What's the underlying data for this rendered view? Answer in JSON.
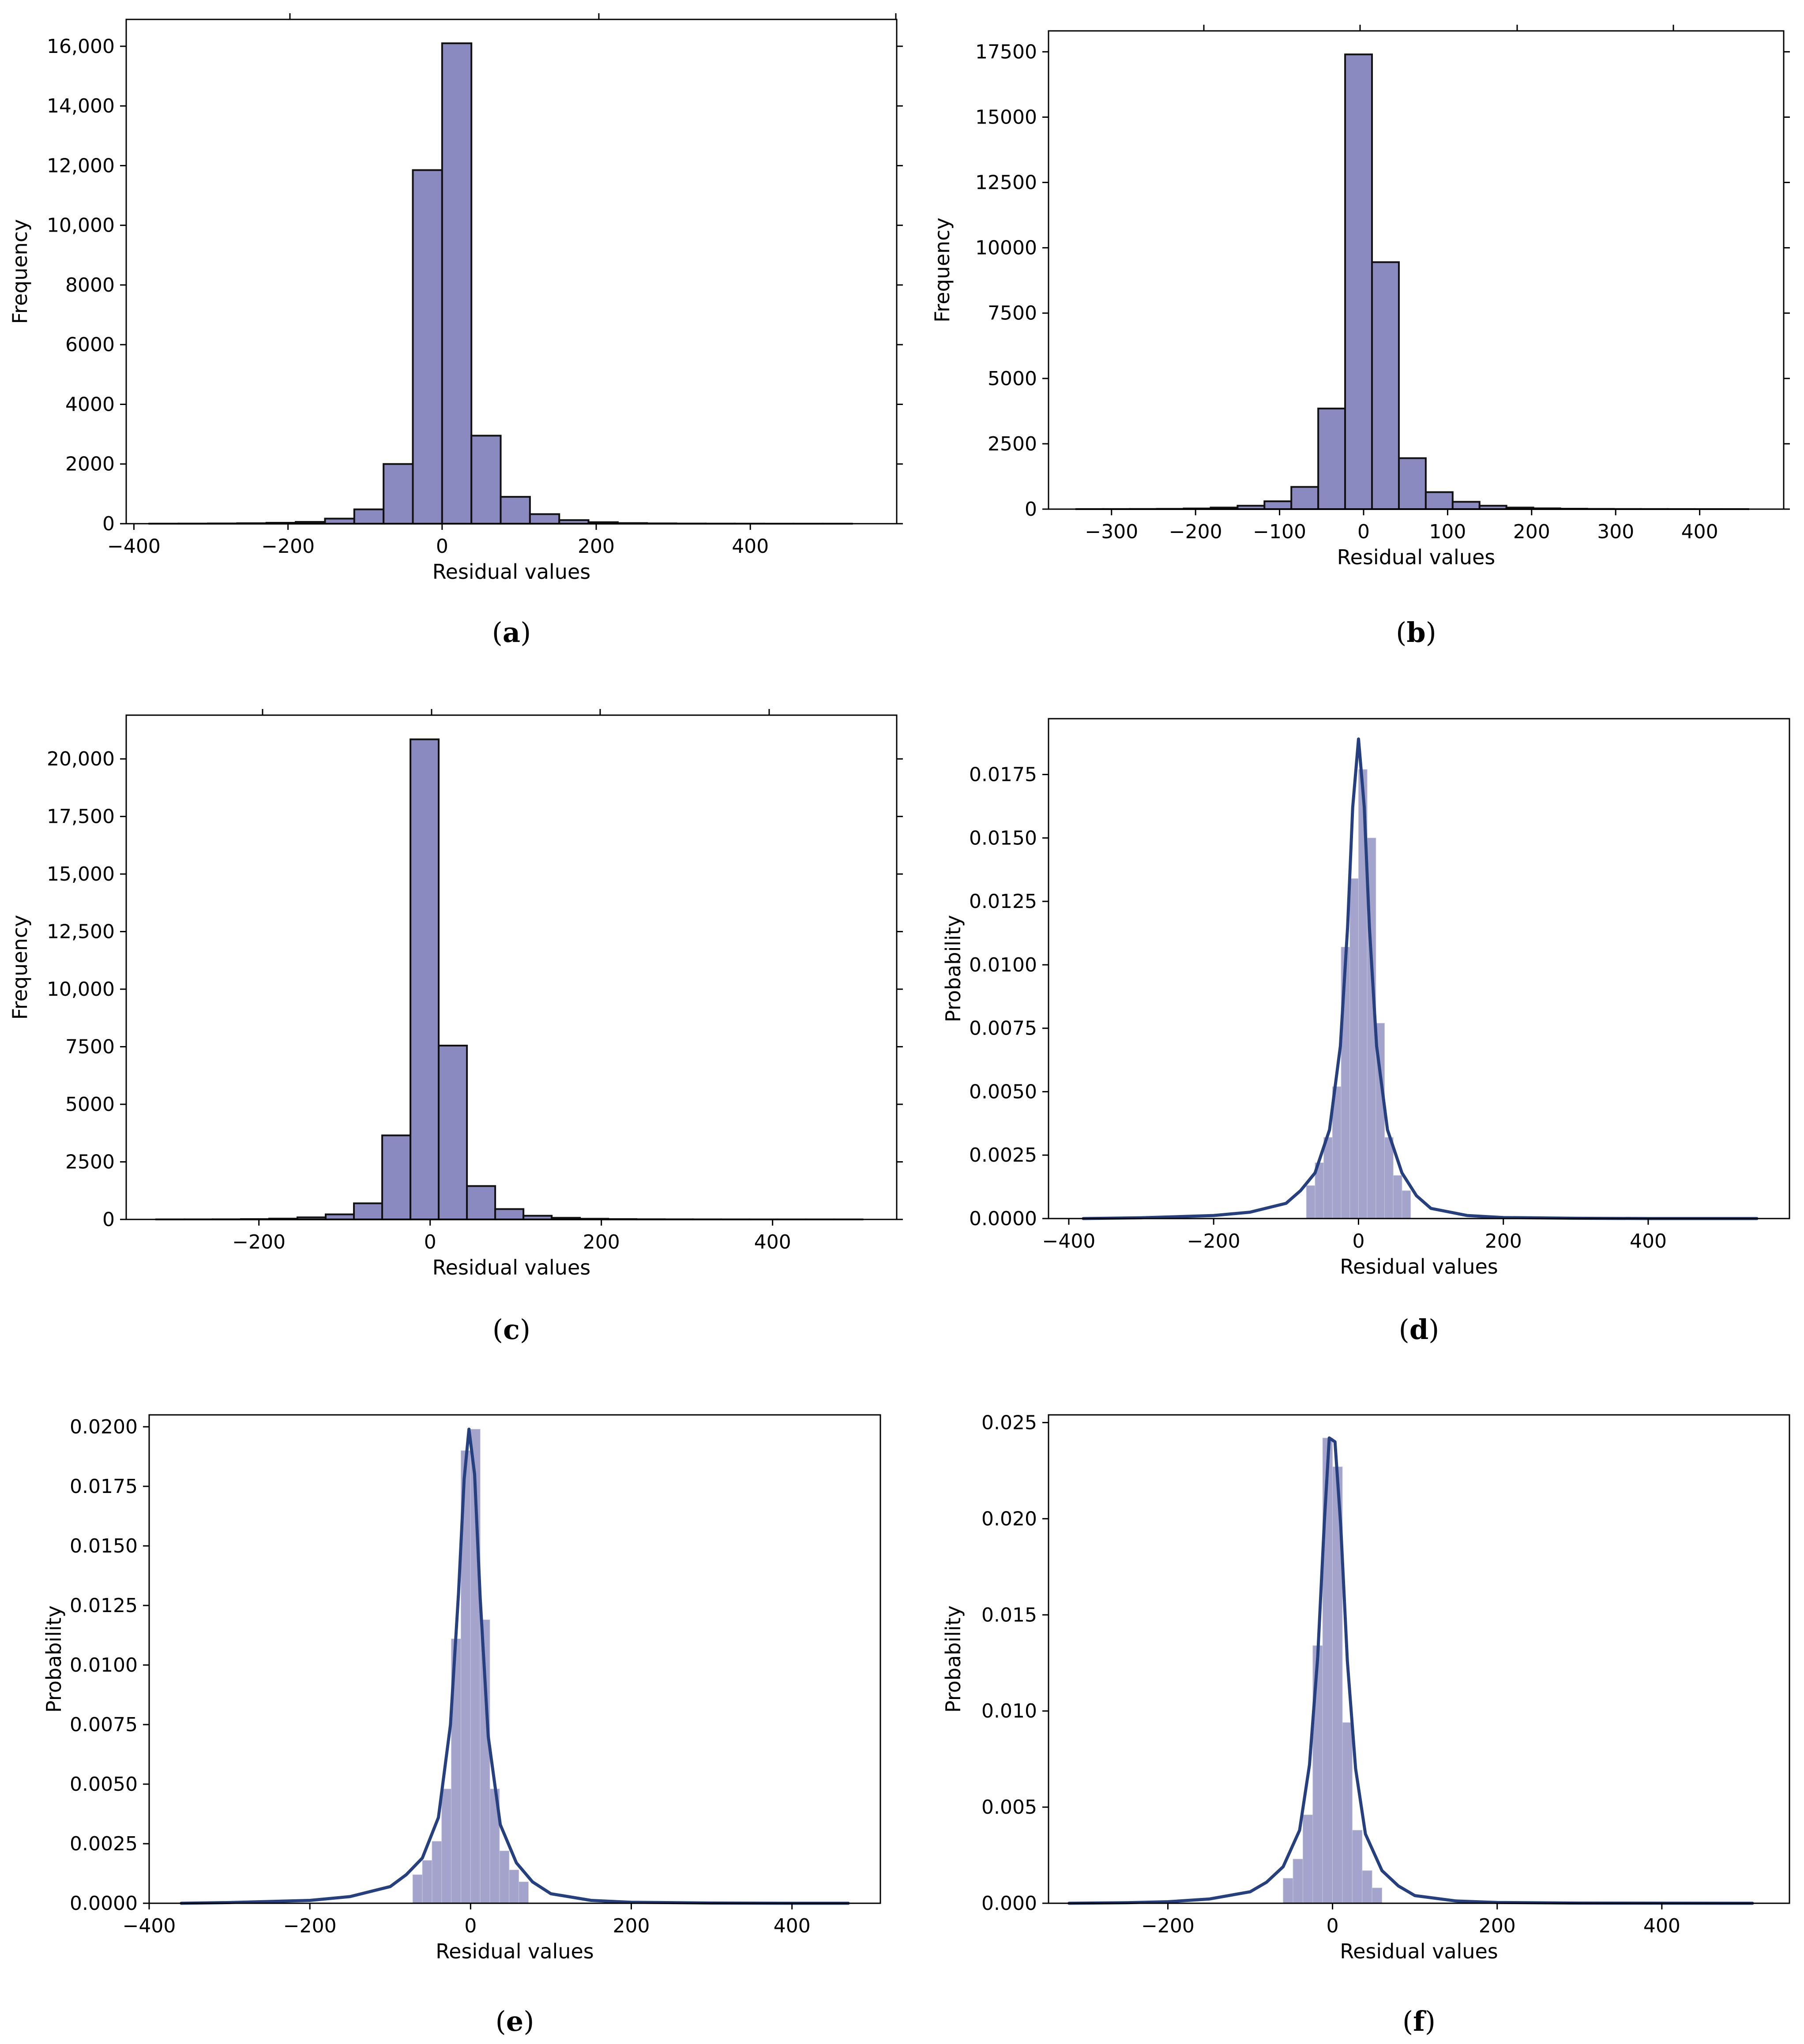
{
  "chart_data": [
    {
      "id": "a",
      "type": "bar",
      "panel_label": "a",
      "title": "",
      "xlabel": "Residual values",
      "ylabel": "Frequency",
      "xlim": [
        -410,
        590
      ],
      "ylim": [
        0,
        16900
      ],
      "x_ticks": [
        -400,
        -200,
        0,
        200,
        400
      ],
      "x_tick_labels": [
        "−400",
        "−200",
        "0",
        "200",
        "400"
      ],
      "y_ticks": [
        0,
        2000,
        4000,
        6000,
        8000,
        10000,
        12000,
        14000,
        16000
      ],
      "y_tick_labels": [
        "0",
        "2000",
        "4000",
        "6000",
        "8000",
        "10,000",
        "12,000",
        "14,000",
        "16,000"
      ],
      "bin_edges": [
        -380,
        -342,
        -304,
        -266,
        -228,
        -190,
        -152,
        -114,
        -76,
        -38,
        0,
        38,
        76,
        114,
        152,
        190,
        228,
        266,
        304,
        342,
        380,
        418,
        456,
        494,
        532
      ],
      "values": [
        2,
        4,
        8,
        15,
        30,
        60,
        170,
        480,
        2000,
        11850,
        16100,
        2950,
        900,
        320,
        120,
        50,
        20,
        10,
        5,
        3,
        2,
        1,
        1,
        1
      ]
    },
    {
      "id": "b",
      "type": "bar",
      "panel_label": "b",
      "title": "",
      "xlabel": "Residual values",
      "ylabel": "Frequency",
      "xlim": [
        -375,
        500
      ],
      "ylim": [
        0,
        18300
      ],
      "x_ticks": [
        -300,
        -200,
        -100,
        0,
        100,
        200,
        300,
        400
      ],
      "x_tick_labels": [
        "−300",
        "−200",
        "−100",
        "0",
        "100",
        "200",
        "300",
        "400"
      ],
      "y_ticks": [
        0,
        2500,
        5000,
        7500,
        10000,
        12500,
        15000,
        17500
      ],
      "y_tick_labels": [
        "0",
        "2500",
        "5000",
        "7500",
        "10000",
        "12500",
        "15000",
        "17500"
      ],
      "bin_edges": [
        -342,
        -310,
        -278,
        -246,
        -214,
        -182,
        -150,
        -118,
        -86,
        -54,
        -22,
        10,
        42,
        74,
        106,
        138,
        170,
        202,
        234,
        266,
        298,
        330,
        362,
        394,
        426,
        458
      ],
      "values": [
        2,
        3,
        5,
        10,
        25,
        60,
        130,
        300,
        850,
        3850,
        17400,
        9450,
        1950,
        650,
        280,
        130,
        60,
        30,
        15,
        8,
        4,
        3,
        2,
        1,
        1
      ]
    },
    {
      "id": "c",
      "type": "bar",
      "panel_label": "c",
      "title": "",
      "xlabel": "Residual values",
      "ylabel": "Frequency",
      "xlim": [
        -355,
        545
      ],
      "ylim": [
        0,
        21900
      ],
      "x_ticks": [
        -200,
        0,
        200,
        400
      ],
      "x_tick_labels": [
        "−200",
        "0",
        "200",
        "400"
      ],
      "y_ticks": [
        0,
        2500,
        5000,
        7500,
        10000,
        12500,
        15000,
        17500,
        20000
      ],
      "y_tick_labels": [
        "0",
        "2500",
        "5000",
        "7500",
        "10,000",
        "12,500",
        "15,000",
        "17,500",
        "20,000"
      ],
      "bin_edges": [
        -320,
        -287,
        -254,
        -221,
        -188,
        -155,
        -122,
        -89,
        -56,
        -23,
        10,
        43,
        76,
        109,
        142,
        175,
        208,
        241,
        274,
        307,
        340,
        373,
        406,
        439,
        472,
        505
      ],
      "values": [
        2,
        3,
        6,
        15,
        35,
        90,
        220,
        700,
        3650,
        20850,
        7550,
        1450,
        450,
        160,
        70,
        30,
        15,
        8,
        5,
        3,
        2,
        1,
        1,
        1,
        1
      ]
    },
    {
      "id": "d",
      "type": "bar",
      "panel_label": "d",
      "title": "",
      "xlabel": "Residual values",
      "ylabel": "Probability",
      "xlim": [
        -428,
        595
      ],
      "ylim": [
        0,
        0.0197
      ],
      "x_ticks": [
        -400,
        -200,
        0,
        200,
        400
      ],
      "x_tick_labels": [
        "−400",
        "−200",
        "0",
        "200",
        "400"
      ],
      "y_ticks": [
        0,
        0.0025,
        0.005,
        0.0075,
        0.01,
        0.0125,
        0.015,
        0.0175
      ],
      "y_tick_labels": [
        "0.0000",
        "0.0025",
        "0.0050",
        "0.0075",
        "0.0100",
        "0.0125",
        "0.0150",
        "0.0175"
      ],
      "bin_edges": [
        -72,
        -60,
        -48,
        -36,
        -24,
        -12,
        0,
        12,
        24,
        36,
        48,
        60,
        72
      ],
      "values": [
        0.0013,
        0.0022,
        0.0032,
        0.0052,
        0.0107,
        0.0134,
        0.0177,
        0.015,
        0.0077,
        0.0032,
        0.0017,
        0.0011
      ],
      "kde_x": [
        -380,
        -300,
        -200,
        -150,
        -100,
        -80,
        -60,
        -40,
        -25,
        -15,
        -8,
        0,
        8,
        15,
        25,
        40,
        60,
        80,
        100,
        150,
        200,
        300,
        400,
        550
      ],
      "kde_y": [
        0.0,
        3e-05,
        0.00012,
        0.00025,
        0.0006,
        0.0011,
        0.0018,
        0.0035,
        0.0068,
        0.0115,
        0.0162,
        0.0189,
        0.0162,
        0.0115,
        0.0068,
        0.0035,
        0.0018,
        0.0009,
        0.0004,
        0.00012,
        4e-05,
        1e-05,
        0.0,
        0.0
      ]
    },
    {
      "id": "e",
      "type": "bar",
      "panel_label": "e",
      "title": "",
      "xlabel": "Residual values",
      "ylabel": "Probability",
      "xlim": [
        -400,
        510
      ],
      "ylim": [
        0,
        0.0205
      ],
      "x_ticks": [
        -400,
        -200,
        0,
        200,
        400
      ],
      "x_tick_labels": [
        "−400",
        "−200",
        "0",
        "200",
        "400"
      ],
      "y_ticks": [
        0,
        0.0025,
        0.005,
        0.0075,
        0.01,
        0.0125,
        0.015,
        0.0175,
        0.02
      ],
      "y_tick_labels": [
        "0.0000",
        "0.0025",
        "0.0050",
        "0.0075",
        "0.0100",
        "0.0125",
        "0.0150",
        "0.0175",
        "0.0200"
      ],
      "bin_edges": [
        -72,
        -60,
        -48,
        -36,
        -24,
        -12,
        0,
        12,
        24,
        36,
        48,
        60,
        72
      ],
      "values": [
        0.0012,
        0.0018,
        0.0026,
        0.0048,
        0.0111,
        0.019,
        0.0199,
        0.0119,
        0.0048,
        0.0022,
        0.0014,
        0.0009
      ],
      "kde_x": [
        -360,
        -300,
        -200,
        -150,
        -100,
        -80,
        -60,
        -40,
        -25,
        -15,
        -8,
        -2,
        5,
        12,
        22,
        37,
        57,
        77,
        100,
        150,
        200,
        300,
        400,
        470
      ],
      "kde_y": [
        0.0,
        3e-05,
        0.00012,
        0.00028,
        0.0007,
        0.0012,
        0.0019,
        0.0036,
        0.0075,
        0.013,
        0.0178,
        0.0199,
        0.018,
        0.0128,
        0.007,
        0.0033,
        0.0017,
        0.0009,
        0.0004,
        0.00012,
        4e-05,
        1e-05,
        0.0,
        0.0
      ]
    },
    {
      "id": "f",
      "type": "bar",
      "panel_label": "f",
      "title": "",
      "xlabel": "Residual values",
      "ylabel": "Probability",
      "xlim": [
        -345,
        555
      ],
      "ylim": [
        0,
        0.0254
      ],
      "x_ticks": [
        -200,
        0,
        200,
        400
      ],
      "x_tick_labels": [
        "−200",
        "0",
        "200",
        "400"
      ],
      "y_ticks": [
        0,
        0.005,
        0.01,
        0.015,
        0.02,
        0.025
      ],
      "y_tick_labels": [
        "0.000",
        "0.005",
        "0.010",
        "0.015",
        "0.020",
        "0.025"
      ],
      "bin_edges": [
        -60,
        -48,
        -36,
        -24,
        -12,
        0,
        12,
        24,
        36,
        48,
        60
      ],
      "values": [
        0.0013,
        0.0023,
        0.0046,
        0.0134,
        0.0242,
        0.0227,
        0.0094,
        0.0038,
        0.0017,
        0.0008
      ],
      "kde_x": [
        -320,
        -250,
        -200,
        -150,
        -100,
        -80,
        -60,
        -40,
        -28,
        -18,
        -10,
        -4,
        3,
        10,
        18,
        28,
        40,
        60,
        80,
        100,
        150,
        200,
        300,
        510
      ],
      "kde_y": [
        0.0,
        3e-05,
        8e-05,
        0.00022,
        0.0006,
        0.0011,
        0.0019,
        0.0038,
        0.0072,
        0.0128,
        0.0198,
        0.0242,
        0.024,
        0.0196,
        0.0126,
        0.007,
        0.0036,
        0.0017,
        0.0009,
        0.0004,
        0.00012,
        4e-05,
        1e-05,
        0.0
      ]
    }
  ]
}
